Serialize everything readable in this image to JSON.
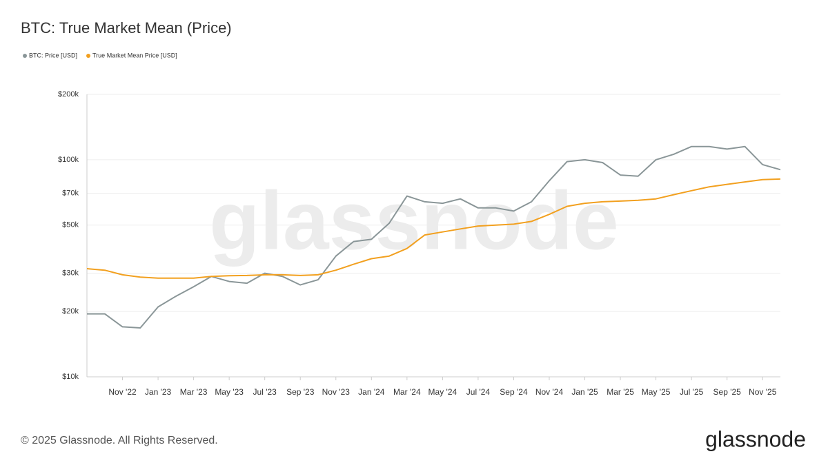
{
  "chart_data": {
    "type": "line",
    "title": "BTC: True Market Mean (Price)",
    "x": [
      "2022-09",
      "2022-10",
      "2022-11",
      "2022-12",
      "2023-01",
      "2023-02",
      "2023-03",
      "2023-04",
      "2023-05",
      "2023-06",
      "2023-07",
      "2023-08",
      "2023-09",
      "2023-10",
      "2023-11",
      "2023-12",
      "2024-01",
      "2024-02",
      "2024-03",
      "2024-04",
      "2024-05",
      "2024-06",
      "2024-07",
      "2024-08",
      "2024-09",
      "2024-10",
      "2024-11",
      "2024-12",
      "2025-01",
      "2025-02",
      "2025-03",
      "2025-04",
      "2025-05",
      "2025-06",
      "2025-07",
      "2025-08",
      "2025-09",
      "2025-10",
      "2025-11",
      "2025-12"
    ],
    "series": [
      {
        "name": "BTC: Price [USD]",
        "color": "#8a9698",
        "values": [
          19500,
          19500,
          17000,
          16800,
          21000,
          23500,
          26000,
          29000,
          27500,
          27000,
          30000,
          29000,
          26500,
          28000,
          36000,
          42000,
          43000,
          51000,
          68000,
          64000,
          63000,
          66000,
          60000,
          60000,
          58000,
          64000,
          80000,
          98000,
          100000,
          97000,
          85000,
          84000,
          100000,
          106000,
          115000,
          115000,
          112000,
          115000,
          95000,
          90000
        ]
      },
      {
        "name": "True Market Mean Price [USD]",
        "color": "#f2a01f",
        "values": [
          31500,
          31000,
          29500,
          28800,
          28500,
          28500,
          28500,
          29000,
          29200,
          29300,
          29500,
          29500,
          29300,
          29500,
          31000,
          33000,
          35000,
          36000,
          39000,
          45000,
          46500,
          48000,
          49500,
          50000,
          50500,
          52000,
          56000,
          61000,
          63000,
          64000,
          64500,
          65000,
          66000,
          69000,
          72000,
          75000,
          77000,
          79000,
          81000,
          81500
        ]
      }
    ],
    "xlim": [
      "2022-09",
      "2025-12"
    ],
    "xticks": [
      {
        "value": "2022-11",
        "label": "Nov '22"
      },
      {
        "value": "2023-01",
        "label": "Jan '23"
      },
      {
        "value": "2023-03",
        "label": "Mar '23"
      },
      {
        "value": "2023-05",
        "label": "May '23"
      },
      {
        "value": "2023-07",
        "label": "Jul '23"
      },
      {
        "value": "2023-09",
        "label": "Sep '23"
      },
      {
        "value": "2023-11",
        "label": "Nov '23"
      },
      {
        "value": "2024-01",
        "label": "Jan '24"
      },
      {
        "value": "2024-03",
        "label": "Mar '24"
      },
      {
        "value": "2024-05",
        "label": "May '24"
      },
      {
        "value": "2024-07",
        "label": "Jul '24"
      },
      {
        "value": "2024-09",
        "label": "Sep '24"
      },
      {
        "value": "2024-11",
        "label": "Nov '24"
      },
      {
        "value": "2025-01",
        "label": "Jan '25"
      },
      {
        "value": "2025-03",
        "label": "Mar '25"
      },
      {
        "value": "2025-05",
        "label": "May '25"
      },
      {
        "value": "2025-07",
        "label": "Jul '25"
      },
      {
        "value": "2025-09",
        "label": "Sep '25"
      },
      {
        "value": "2025-11",
        "label": "Nov '25"
      }
    ],
    "ylim": [
      10000,
      200000
    ],
    "yticks": [
      {
        "value": 10000,
        "label": "$10k"
      },
      {
        "value": 20000,
        "label": "$20k"
      },
      {
        "value": 30000,
        "label": "$30k"
      },
      {
        "value": 50000,
        "label": "$50k"
      },
      {
        "value": 70000,
        "label": "$70k"
      },
      {
        "value": 100000,
        "label": "$100k"
      },
      {
        "value": 200000,
        "label": "$200k"
      }
    ],
    "log_scale": true,
    "grid": true,
    "legend": "top-left",
    "watermark": "glassnode"
  },
  "footer": {
    "copyright": "© 2025 Glassnode. All Rights Reserved.",
    "logo": "glassnode"
  }
}
